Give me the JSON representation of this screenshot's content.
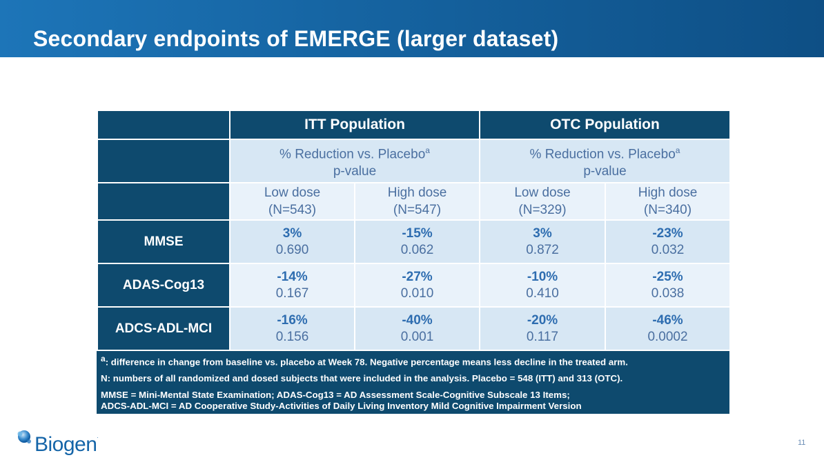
{
  "slide": {
    "title": "Secondary endpoints of EMERGE (larger dataset)",
    "page_number": "11",
    "logo_text": "Biogen",
    "logo_tm": "."
  },
  "table": {
    "group_headers": [
      "ITT Population",
      "OTC Population"
    ],
    "subheader": {
      "line1": "% Reduction vs. Placebo",
      "sup": "a",
      "line2": "p-value"
    },
    "doses": [
      {
        "name": "Low dose",
        "n": "(N=543)"
      },
      {
        "name": "High dose",
        "n": "(N=547)"
      },
      {
        "name": "Low dose",
        "n": "(N=329)"
      },
      {
        "name": "High dose",
        "n": "(N=340)"
      }
    ],
    "rows": [
      {
        "label": "MMSE",
        "cells": [
          {
            "pct": "3%",
            "p": "0.690"
          },
          {
            "pct": "-15%",
            "p": "0.062"
          },
          {
            "pct": "3%",
            "p": "0.872"
          },
          {
            "pct": "-23%",
            "p": "0.032"
          }
        ]
      },
      {
        "label": "ADAS-Cog13",
        "cells": [
          {
            "pct": "-14%",
            "p": "0.167"
          },
          {
            "pct": "-27%",
            "p": "0.010"
          },
          {
            "pct": "-10%",
            "p": "0.410"
          },
          {
            "pct": "-25%",
            "p": "0.038"
          }
        ]
      },
      {
        "label": "ADCS-ADL-MCI",
        "cells": [
          {
            "pct": "-16%",
            "p": "0.156"
          },
          {
            "pct": "-40%",
            "p": "0.001"
          },
          {
            "pct": "-20%",
            "p": "0.117"
          },
          {
            "pct": "-46%",
            "p": "0.0002"
          }
        ]
      }
    ]
  },
  "footnotes": {
    "a_sup": "a",
    "a_text": ": difference in change from baseline vs. placebo at Week 78. Negative percentage means less decline in the treated arm.",
    "n_text": "N: numbers of all randomized and dosed subjects that were included in the analysis. Placebo = 548 (ITT) and 313 (OTC).",
    "abbrev_line1": "MMSE = Mini-Mental State Examination; ADAS-Cog13 = AD Assessment Scale-Cognitive Subscale 13 Items;",
    "abbrev_line2": "ADCS-ADL-MCI = AD Cooperative Study-Activities of Daily Living Inventory Mild Cognitive Impairment Version"
  },
  "colors": {
    "header_blue": "#1665a3",
    "dark_navy": "#0e4a6e",
    "light_cell": "#d7e7f4",
    "pct_blue": "#2e6db0"
  }
}
